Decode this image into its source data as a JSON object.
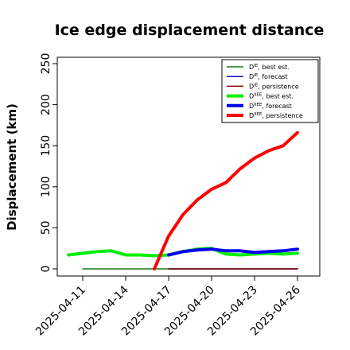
{
  "chart_data": {
    "type": "line",
    "title": "Ice edge displacement distance",
    "ylabel": "Displacement (km)",
    "xlabel": "",
    "ylim": [
      0,
      250
    ],
    "yticks": [
      0,
      50,
      100,
      150,
      200,
      250
    ],
    "xlim": [
      "2025-04-10",
      "2025-04-27"
    ],
    "xticks": [
      {
        "date": "2025-04-11",
        "label": "2025-04-11",
        "color": "#000000"
      },
      {
        "date": "2025-04-14",
        "label": "2025-04-14",
        "color": "#000000"
      },
      {
        "date": "2025-04-17",
        "label": "2025-04-17",
        "color": "#2a8a2a"
      },
      {
        "date": "2025-04-20",
        "label": "2025-04-20",
        "color": "#000000"
      },
      {
        "date": "2025-04-23",
        "label": "2025-04-23",
        "color": "#000000"
      },
      {
        "date": "2025-04-26",
        "label": "2025-04-26",
        "color": "#000000"
      }
    ],
    "legend_position": "top-right",
    "series": [
      {
        "name": "D^IE, best est.",
        "legend_main": "D",
        "legend_sup": "IE",
        "legend_rest": ", best est.",
        "color": "#1a7a1a",
        "width": 1.5,
        "x": [
          "2025-04-11",
          "2025-04-12",
          "2025-04-13",
          "2025-04-14",
          "2025-04-15",
          "2025-04-16",
          "2025-04-17",
          "2025-04-18",
          "2025-04-19",
          "2025-04-20",
          "2025-04-21",
          "2025-04-22",
          "2025-04-23",
          "2025-04-24",
          "2025-04-25",
          "2025-04-26"
        ],
        "y": [
          0,
          0,
          0,
          0,
          0,
          0,
          0,
          0,
          0,
          0,
          0,
          0,
          0,
          0,
          0,
          0
        ]
      },
      {
        "name": "D^IE, forecast",
        "legend_main": "D",
        "legend_sup": "IE",
        "legend_rest": ", forecast",
        "color": "#1010cc",
        "width": 1.5,
        "x": [
          "2025-04-17",
          "2025-04-18",
          "2025-04-19",
          "2025-04-20",
          "2025-04-21",
          "2025-04-22",
          "2025-04-23",
          "2025-04-24",
          "2025-04-25",
          "2025-04-26"
        ],
        "y": [
          0,
          0,
          0,
          0,
          0,
          0,
          0,
          0,
          0,
          0
        ]
      },
      {
        "name": "D^IE, persistence",
        "legend_main": "D",
        "legend_sup": "IE",
        "legend_rest": ", persistence",
        "color": "#8b0000",
        "width": 1.5,
        "x": [
          "2025-04-17",
          "2025-04-18",
          "2025-04-19",
          "2025-04-20",
          "2025-04-21",
          "2025-04-22",
          "2025-04-23",
          "2025-04-24",
          "2025-04-25",
          "2025-04-26"
        ],
        "y": [
          0,
          0,
          0,
          0,
          0,
          0,
          0,
          0,
          0,
          0
        ]
      },
      {
        "name": "D^IIEE, best est.",
        "legend_main": "D",
        "legend_sup": "IIEE",
        "legend_rest": ", best est.",
        "color": "#00ee00",
        "width": 4,
        "x": [
          "2025-04-10",
          "2025-04-11",
          "2025-04-12",
          "2025-04-13",
          "2025-04-14",
          "2025-04-15",
          "2025-04-16",
          "2025-04-17",
          "2025-04-18",
          "2025-04-19",
          "2025-04-20",
          "2025-04-21",
          "2025-04-22",
          "2025-04-23",
          "2025-04-24",
          "2025-04-25",
          "2025-04-26"
        ],
        "y": [
          17,
          19,
          21,
          22,
          17,
          17,
          16,
          17,
          21,
          24,
          25,
          18,
          17,
          18,
          19,
          18,
          19
        ]
      },
      {
        "name": "D^IIEE, forecast",
        "legend_main": "D",
        "legend_sup": "IIEE",
        "legend_rest": ", forecast",
        "color": "#0000ee",
        "width": 4,
        "x": [
          "2025-04-17",
          "2025-04-18",
          "2025-04-19",
          "2025-04-20",
          "2025-04-21",
          "2025-04-22",
          "2025-04-23",
          "2025-04-24",
          "2025-04-25",
          "2025-04-26"
        ],
        "y": [
          17,
          21,
          23,
          24,
          22,
          22,
          20,
          21,
          22,
          24
        ]
      },
      {
        "name": "D^IIEE, persistence",
        "legend_main": "D",
        "legend_sup": "IIEE",
        "legend_rest": ", persistence",
        "color": "#ff0000",
        "width": 4,
        "x": [
          "2025-04-16",
          "2025-04-17",
          "2025-04-18",
          "2025-04-19",
          "2025-04-20",
          "2025-04-21",
          "2025-04-22",
          "2025-04-23",
          "2025-04-24",
          "2025-04-25",
          "2025-04-26"
        ],
        "y": [
          0,
          40,
          66,
          84,
          97,
          105,
          122,
          135,
          144,
          150,
          166
        ]
      }
    ]
  }
}
